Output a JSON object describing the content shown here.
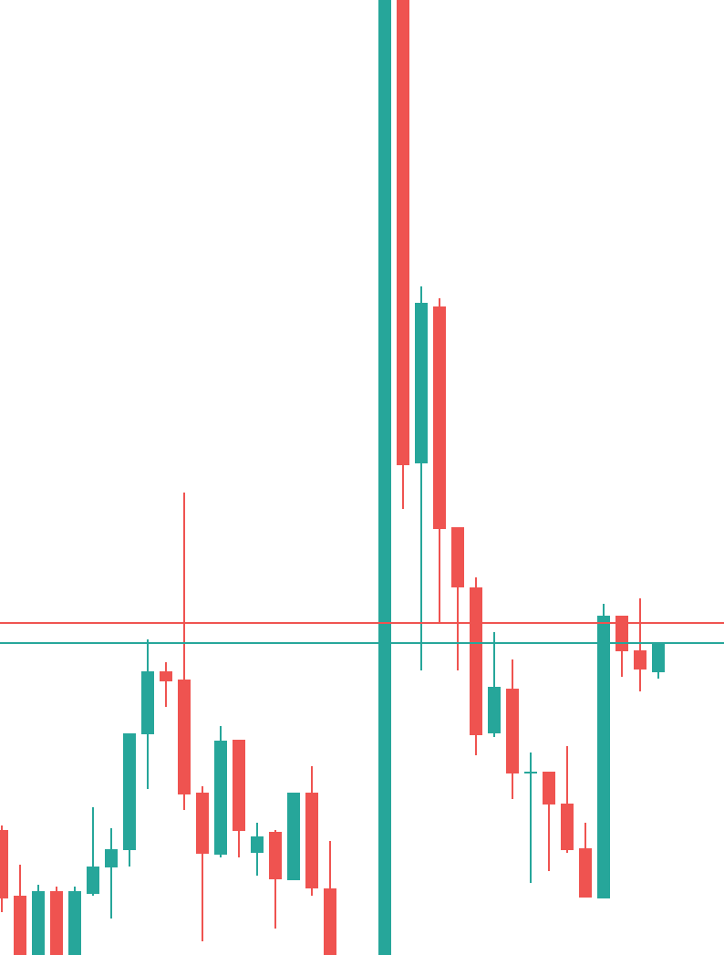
{
  "chart_data": {
    "type": "candlestick",
    "up_color": "#26a69a",
    "down_color": "#ef5350",
    "ylim": [
      0,
      1047
    ],
    "categories": [
      null,
      null,
      null,
      null,
      null,
      null,
      null,
      null,
      null,
      null,
      null,
      null,
      null,
      null,
      null,
      null,
      null,
      null,
      null,
      null,
      null,
      null,
      null,
      null,
      null,
      null,
      null,
      null,
      null,
      null,
      null,
      null,
      null,
      null,
      null,
      null,
      null
    ],
    "open": [
      137,
      65,
      0,
      70,
      0,
      67,
      96,
      115,
      242,
      311,
      302,
      178,
      110,
      236,
      112,
      135,
      82,
      178,
      73,
      null,
      null,
      0,
      1047,
      539,
      711,
      469,
      403,
      243,
      292,
      199,
      201,
      166,
      117,
      62,
      372,
      334,
      310
    ],
    "high": [
      142,
      99,
      77,
      75,
      75,
      162,
      139,
      243,
      346,
      321,
      507,
      185,
      251,
      236,
      145,
      137,
      178,
      207,
      125,
      null,
      null,
      1047,
      1047,
      733,
      720,
      469,
      414,
      354,
      324,
      222,
      201,
      229,
      145,
      385,
      372,
      391,
      342
    ],
    "low": [
      47,
      0,
      0,
      0,
      0,
      65,
      40,
      97,
      182,
      272,
      159,
      15,
      107,
      107,
      87,
      29,
      82,
      65,
      0,
      null,
      null,
      0,
      489,
      312,
      364,
      312,
      219,
      239,
      171,
      79,
      92,
      112,
      63,
      62,
      305,
      289,
      303
    ],
    "close": [
      62,
      0,
      70,
      0,
      70,
      97,
      116,
      243,
      311,
      300,
      176,
      111,
      235,
      136,
      130,
      83,
      178,
      73,
      0,
      null,
      null,
      1047,
      537,
      715,
      467,
      403,
      241,
      294,
      199,
      201,
      165,
      115,
      63,
      372,
      333,
      313,
      342
    ],
    "hlines": [
      {
        "value": 364,
        "color": "#ef5350"
      },
      {
        "value": 342,
        "color": "#26a69a"
      }
    ]
  }
}
